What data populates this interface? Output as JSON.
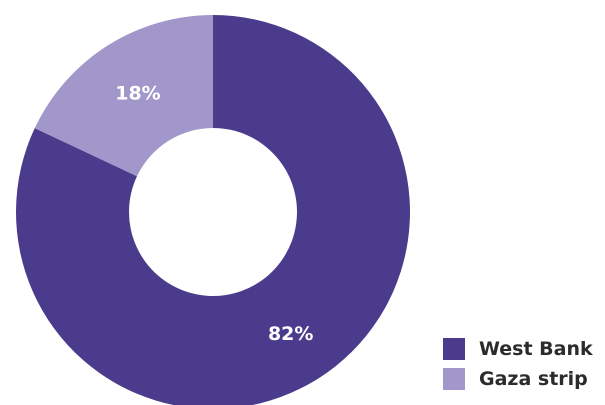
{
  "chart_data": {
    "type": "pie",
    "title": "",
    "donut": true,
    "categories": [
      "West Bank",
      "Gaza strip"
    ],
    "values": [
      82,
      18
    ],
    "data_labels": [
      "82%",
      "18%"
    ],
    "colors": [
      "#4a3b8c",
      "#a197cb"
    ],
    "legend": {
      "placement": "bottom-right",
      "items": [
        {
          "label": "West Bank",
          "color": "#4a3b8c"
        },
        {
          "label": "Gaza strip",
          "color": "#a197cb"
        }
      ]
    }
  }
}
